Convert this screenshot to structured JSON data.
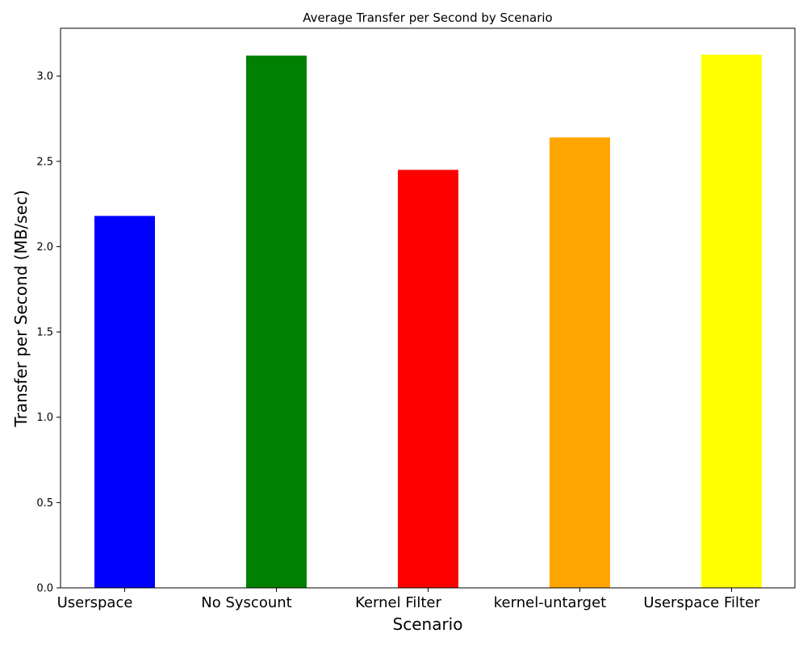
{
  "chart_data": {
    "type": "bar",
    "title": "Average Transfer per Second by Scenario",
    "xlabel": "Scenario",
    "ylabel": "Transfer per Second (MB/sec)",
    "categories": [
      "Userspace",
      "No Syscount",
      "Kernel Filter",
      "kernel-untarget",
      "Userspace Filter"
    ],
    "values": [
      2.18,
      3.12,
      2.45,
      2.64,
      3.125
    ],
    "colors": [
      "#0000ff",
      "#008000",
      "#ff0000",
      "#ffa500",
      "#ffff00"
    ],
    "ylim": [
      0,
      3.28
    ],
    "yticks": [
      "0.0",
      "0.5",
      "1.0",
      "1.5",
      "2.0",
      "2.5",
      "3.0"
    ],
    "grid": false,
    "legend": "none"
  }
}
